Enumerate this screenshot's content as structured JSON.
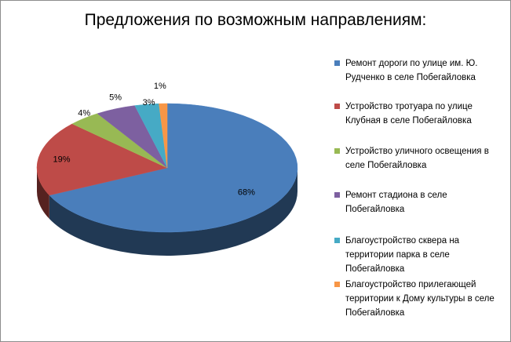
{
  "chart_data": {
    "type": "pie",
    "title": "Предложения по возможным направлениям:",
    "legend_position": "right",
    "slices": [
      {
        "label": "Ремонт дороги по улице им. Ю. Рудченко в селе Побегайловка",
        "value": 68,
        "value_label": "68%",
        "color": "#4A7EBB"
      },
      {
        "label": "Устройство тротуара по улице Клубная в селе Побегайловка",
        "value": 19,
        "value_label": "19%",
        "color": "#BE4B48"
      },
      {
        "label": "Устройство уличного освещения в селе Побегайловка",
        "value": 4,
        "value_label": "4%",
        "color": "#98B954"
      },
      {
        "label": "Ремонт стадиона в селе Побегайловка",
        "value": 5,
        "value_label": "5%",
        "color": "#7D60A0"
      },
      {
        "label": "Благоустройство сквера на территории  парка в селе Побегайловка",
        "value": 3,
        "value_label": "3%",
        "color": "#46AAC5"
      },
      {
        "label": "Благоустройство прилегающей территории к Дому культуры в селе Побегайловка",
        "value": 1,
        "value_label": "1%",
        "color": "#F79646"
      }
    ]
  }
}
